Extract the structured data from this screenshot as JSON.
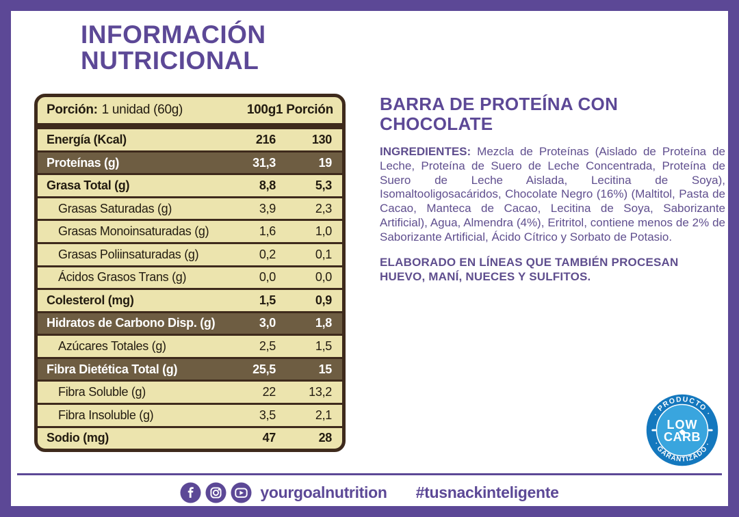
{
  "title": {
    "line1": "INFORMACIÓN",
    "line2": "NUTRICIONAL"
  },
  "table": {
    "header": {
      "portion_label": "Porción:",
      "portion_value": "1 unidad (60g)",
      "col_100g": "100g",
      "col_portion": "1 Porción"
    },
    "rows": [
      {
        "label": "Energía (Kcal)",
        "v100": "216",
        "vp": "130",
        "style": "bold"
      },
      {
        "label": "Proteínas (g)",
        "v100": "31,3",
        "vp": "19",
        "style": "highlight"
      },
      {
        "label": "Grasa Total (g)",
        "v100": "8,8",
        "vp": "5,3",
        "style": "bold"
      },
      {
        "label": "Grasas Saturadas (g)",
        "v100": "3,9",
        "vp": "2,3",
        "style": "indent"
      },
      {
        "label": "Grasas Monoinsaturadas (g)",
        "v100": "1,6",
        "vp": "1,0",
        "style": "indent"
      },
      {
        "label": "Grasas Poliinsaturadas (g)",
        "v100": "0,2",
        "vp": "0,1",
        "style": "indent"
      },
      {
        "label": "Ácidos Grasos Trans (g)",
        "v100": "0,0",
        "vp": "0,0",
        "style": "indent"
      },
      {
        "label": "Colesterol (mg)",
        "v100": "1,5",
        "vp": "0,9",
        "style": "bold"
      },
      {
        "label": "Hidratos de Carbono Disp. (g)",
        "v100": "3,0",
        "vp": "1,8",
        "style": "highlight"
      },
      {
        "label": "Azúcares Totales (g)",
        "v100": "2,5",
        "vp": "1,5",
        "style": "indent"
      },
      {
        "label": "Fibra Dietética Total (g)",
        "v100": "25,5",
        "vp": "15",
        "style": "highlight"
      },
      {
        "label": "Fibra Soluble (g)",
        "v100": "22",
        "vp": "13,2",
        "style": "indent"
      },
      {
        "label": "Fibra Insoluble (g)",
        "v100": "3,5",
        "vp": "2,1",
        "style": "indent"
      },
      {
        "label": "Sodio (mg)",
        "v100": "47",
        "vp": "28",
        "style": "bold"
      }
    ]
  },
  "product": {
    "heading": "BARRA DE PROTEÍNA CON CHOCOLATE",
    "ingredients_label": "INGREDIENTES:",
    "ingredients_text": " Mezcla de Proteínas (Aislado de Proteína de Leche, Proteína de Suero de Leche Concentrada, Proteína de Suero de Leche Aislada, Lecitina de Soya), Isomaltooligosacáridos, Chocolate Negro (16%) (Maltitol, Pasta de Cacao, Manteca de Cacao, Lecitina de Soya, Saborizante Artificial), Agua, Almendra (4%), Eritritol, contiene menos de 2% de Saborizante Artificial, Ácido Cítrico y Sorbato de Potasio.",
    "allergen_text": "ELABORADO EN LÍNEAS QUE TAMBIÉN PROCESAN HUEVO, MANÍ, NUECES Y SULFITOS."
  },
  "badge": {
    "arc_top": "· PRODUCTO ·",
    "arc_bottom": "· GARANTIZADO ·",
    "center_line1": "LOW",
    "center_line2": "CARB"
  },
  "footer": {
    "icons": [
      "facebook-icon",
      "instagram-icon",
      "youtube-icon"
    ],
    "handle": "yourgoalnutrition",
    "hashtag": "#tusnackinteligente"
  },
  "colors": {
    "brand_purple": "#5C4896",
    "body_purple": "#5F4E8E",
    "table_cream": "#ECE4AE",
    "table_brown": "#6E5D42",
    "table_border": "#3E2A1C",
    "badge_dark_blue": "#1478BE",
    "badge_light_blue": "#39A5DE"
  }
}
